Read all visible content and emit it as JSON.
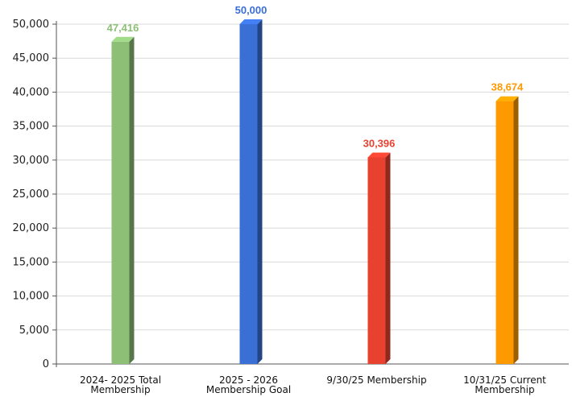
{
  "chart_data": {
    "type": "bar",
    "title": "",
    "xlabel": "",
    "ylabel": "",
    "ylim": [
      0,
      50000
    ],
    "yticks": [
      0,
      5000,
      10000,
      15000,
      20000,
      25000,
      30000,
      35000,
      40000,
      45000,
      50000
    ],
    "ytick_labels": [
      "0",
      "5,000",
      "10,000",
      "15,000",
      "20,000",
      "25,000",
      "30,000",
      "35,000",
      "40,000",
      "45,000",
      "50,000"
    ],
    "grid": true,
    "legend": "none",
    "categories": [
      [
        "2024- 2025 Total",
        "Membership"
      ],
      [
        "2025 - 2026",
        "Membership Goal"
      ],
      [
        "9/30/25 Membership"
      ],
      [
        "10/31/25 Current",
        "Membership"
      ]
    ],
    "values": [
      47416,
      50000,
      30396,
      38674
    ],
    "data_labels": [
      "47,416",
      "50,000",
      "30,396",
      "38,674"
    ],
    "colors": [
      "#8dbf76",
      "#3a6fd6",
      "#e8412f",
      "#ff9900"
    ],
    "label_colors": [
      "#8dbf76",
      "#3a6fd6",
      "#e8412f",
      "#ff9900"
    ]
  }
}
